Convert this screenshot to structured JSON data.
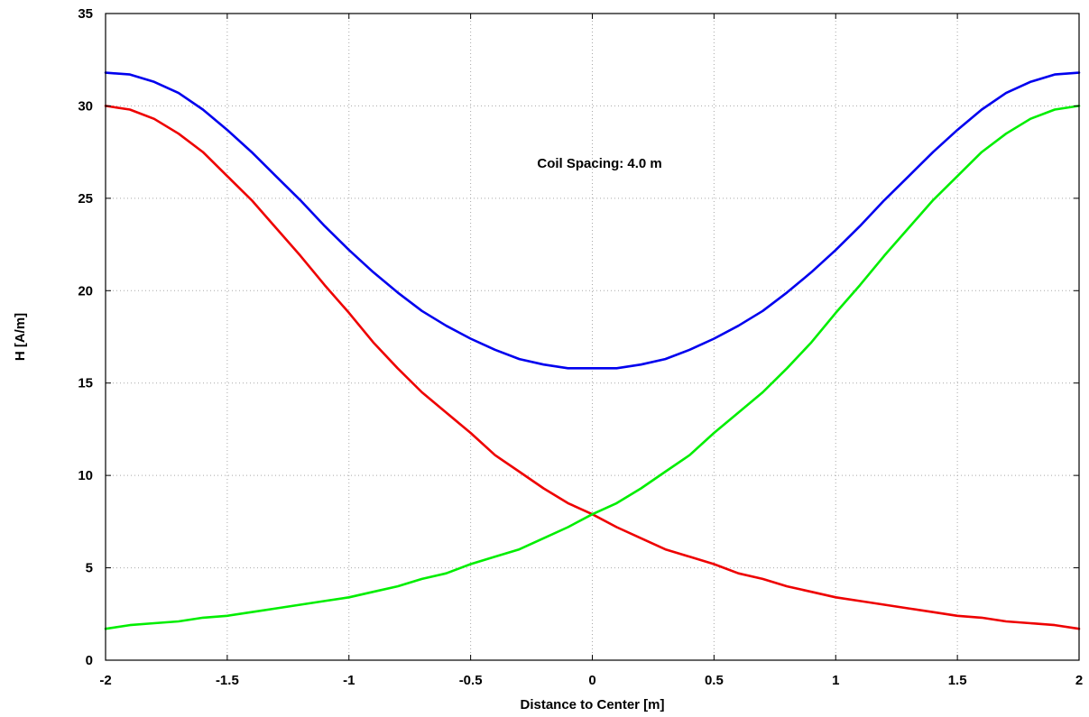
{
  "chart_data": {
    "type": "line",
    "xlabel": "Distance to Center [m]",
    "ylabel": "H [A/m]",
    "title": "",
    "annotation": "Coil Spacing: 4.0 m",
    "xlim": [
      -2,
      2
    ],
    "ylim": [
      0,
      35
    ],
    "xticks": [
      "-2",
      "-1.5",
      "-1",
      "-0.5",
      "0",
      "0.5",
      "1",
      "1.5",
      "2"
    ],
    "yticks": [
      "0",
      "5",
      "10",
      "15",
      "20",
      "25",
      "30",
      "35"
    ],
    "grid": true,
    "series": [
      {
        "color": "#0000ee",
        "x": [
          -2.0,
          -1.9,
          -1.8,
          -1.7,
          -1.6,
          -1.5,
          -1.4,
          -1.3,
          -1.2,
          -1.1,
          -1.0,
          -0.9,
          -0.8,
          -0.7,
          -0.6,
          -0.5,
          -0.4,
          -0.3,
          -0.2,
          -0.1,
          0.0,
          0.1,
          0.2,
          0.3,
          0.4,
          0.5,
          0.6,
          0.7,
          0.8,
          0.9,
          1.0,
          1.1,
          1.2,
          1.3,
          1.4,
          1.5,
          1.6,
          1.7,
          1.8,
          1.9,
          2.0
        ],
        "y": [
          31.8,
          31.7,
          31.3,
          30.7,
          29.8,
          28.7,
          27.5,
          26.2,
          24.9,
          23.5,
          22.2,
          21.0,
          19.9,
          18.9,
          18.1,
          17.4,
          16.8,
          16.3,
          16.0,
          15.8,
          15.8,
          15.8,
          16.0,
          16.3,
          16.8,
          17.4,
          18.1,
          18.9,
          19.9,
          21.0,
          22.2,
          23.5,
          24.9,
          26.2,
          27.5,
          28.7,
          29.8,
          30.7,
          31.3,
          31.7,
          31.8
        ]
      },
      {
        "color": "#ee0000",
        "x": [
          -2.0,
          -1.9,
          -1.8,
          -1.7,
          -1.6,
          -1.5,
          -1.4,
          -1.3,
          -1.2,
          -1.1,
          -1.0,
          -0.9,
          -0.8,
          -0.7,
          -0.6,
          -0.5,
          -0.4,
          -0.3,
          -0.2,
          -0.1,
          0.0,
          0.1,
          0.2,
          0.3,
          0.4,
          0.5,
          0.6,
          0.7,
          0.8,
          0.9,
          1.0,
          1.1,
          1.2,
          1.3,
          1.4,
          1.5,
          1.6,
          1.7,
          1.8,
          1.9,
          2.0
        ],
        "y": [
          30.0,
          29.8,
          29.3,
          28.5,
          27.5,
          26.2,
          24.9,
          23.4,
          21.9,
          20.3,
          18.8,
          17.2,
          15.8,
          14.5,
          13.4,
          12.3,
          11.1,
          10.2,
          9.3,
          8.5,
          7.9,
          7.2,
          6.6,
          6.0,
          5.6,
          5.2,
          4.7,
          4.4,
          4.0,
          3.7,
          3.4,
          3.2,
          3.0,
          2.8,
          2.6,
          2.4,
          2.3,
          2.1,
          2.0,
          1.9,
          1.7
        ]
      },
      {
        "color": "#00ee00",
        "x": [
          -2.0,
          -1.9,
          -1.8,
          -1.7,
          -1.6,
          -1.5,
          -1.4,
          -1.3,
          -1.2,
          -1.1,
          -1.0,
          -0.9,
          -0.8,
          -0.7,
          -0.6,
          -0.5,
          -0.4,
          -0.3,
          -0.2,
          -0.1,
          0.0,
          0.1,
          0.2,
          0.3,
          0.4,
          0.5,
          0.6,
          0.7,
          0.8,
          0.9,
          1.0,
          1.1,
          1.2,
          1.3,
          1.4,
          1.5,
          1.6,
          1.7,
          1.8,
          1.9,
          2.0
        ],
        "y": [
          1.7,
          1.9,
          2.0,
          2.1,
          2.3,
          2.4,
          2.6,
          2.8,
          3.0,
          3.2,
          3.4,
          3.7,
          4.0,
          4.4,
          4.7,
          5.2,
          5.6,
          6.0,
          6.6,
          7.2,
          7.9,
          8.5,
          9.3,
          10.2,
          11.1,
          12.3,
          13.4,
          14.5,
          15.8,
          17.2,
          18.8,
          20.3,
          21.9,
          23.4,
          24.9,
          26.2,
          27.5,
          28.5,
          29.3,
          29.8,
          30.0
        ]
      }
    ]
  }
}
